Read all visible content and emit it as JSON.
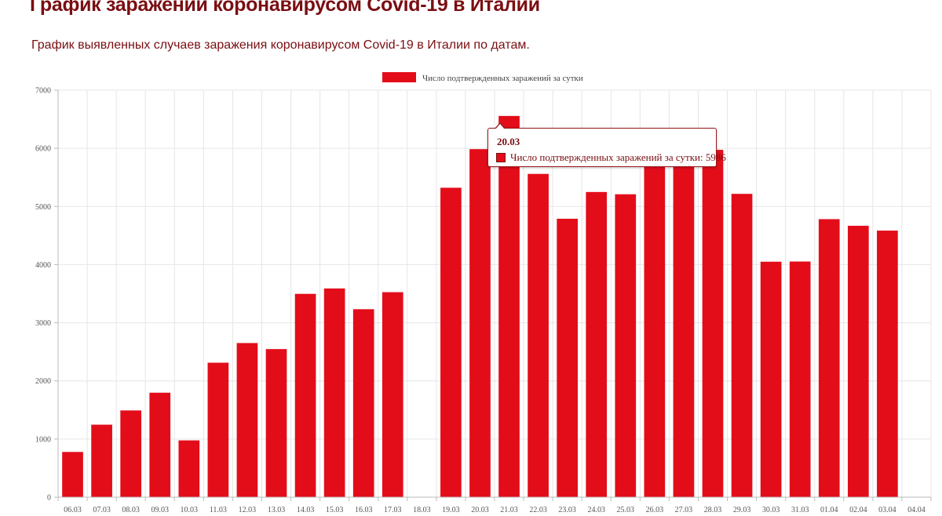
{
  "header": {
    "title": "График заражений коронавирусом Covid-19 в Италии",
    "subtitle": "График выявленных случаев заражения коронавирусом Covid-19 в Италии по датам."
  },
  "tooltip": {
    "title": "20.03",
    "label": "Число подтвержденных заражений за сутки: 5986"
  },
  "colors": {
    "bar": "#e30d1a",
    "grid": "#e6e6e6",
    "axis": "#bbbbbb",
    "title": "#7a0e12"
  },
  "chart_data": {
    "type": "bar",
    "title": "",
    "xlabel": "",
    "ylabel": "",
    "ylim": [
      0,
      7000
    ],
    "yticks": [
      0,
      1000,
      2000,
      3000,
      4000,
      5000,
      6000,
      7000
    ],
    "grid": true,
    "legend_position": "top",
    "categories": [
      "06.03",
      "07.03",
      "08.03",
      "09.03",
      "10.03",
      "11.03",
      "12.03",
      "13.03",
      "14.03",
      "15.03",
      "16.03",
      "17.03",
      "18.03",
      "19.03",
      "20.03",
      "21.03",
      "22.03",
      "23.03",
      "24.03",
      "25.03",
      "26.03",
      "27.03",
      "28.03",
      "29.03",
      "30.03",
      "31.03",
      "01.04",
      "02.04",
      "03.04",
      "04.04"
    ],
    "series": [
      {
        "name": "Число подтвержденных заражений за сутки",
        "values": [
          778,
          1247,
          1492,
          1797,
          977,
          2313,
          2651,
          2547,
          3497,
          3590,
          3233,
          3526,
          null,
          5322,
          5986,
          6557,
          5560,
          4789,
          5249,
          5210,
          6153,
          5959,
          5974,
          5217,
          4050,
          4053,
          4782,
          4668,
          4585,
          null
        ]
      }
    ]
  }
}
